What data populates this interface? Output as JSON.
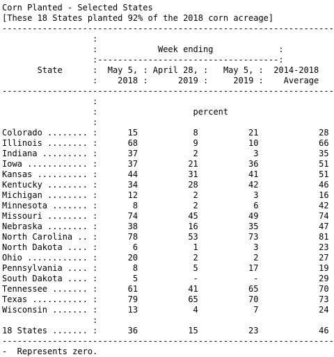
{
  "title": "Corn Planted - Selected States",
  "subtitle": "[These 18 States planted 92% of the 2018 corn acreage]",
  "header": {
    "week_ending": "Week ending",
    "state": "State",
    "col1": [
      "May 5,",
      "2018"
    ],
    "col2": [
      "April 28,",
      "2019"
    ],
    "col3": [
      "May 5,",
      "2019"
    ],
    "col4": [
      "2014-2018",
      "Average"
    ],
    "unit": "percent"
  },
  "rows": [
    {
      "state": "Colorado ........",
      "v": [
        "15",
        "8",
        "21",
        "28"
      ]
    },
    {
      "state": "Illinois ........",
      "v": [
        "68",
        "9",
        "10",
        "66"
      ]
    },
    {
      "state": "Indiana .........",
      "v": [
        "37",
        "2",
        "3",
        "35"
      ]
    },
    {
      "state": "Iowa ............",
      "v": [
        "37",
        "21",
        "36",
        "51"
      ]
    },
    {
      "state": "Kansas ..........",
      "v": [
        "44",
        "31",
        "41",
        "51"
      ]
    },
    {
      "state": "Kentucky ........",
      "v": [
        "34",
        "28",
        "42",
        "46"
      ]
    },
    {
      "state": "Michigan ........",
      "v": [
        "12",
        "2",
        "3",
        "16"
      ]
    },
    {
      "state": "Minnesota .......",
      "v": [
        "8",
        "2",
        "6",
        "42"
      ]
    },
    {
      "state": "Missouri ........",
      "v": [
        "74",
        "45",
        "49",
        "74"
      ]
    },
    {
      "state": "Nebraska ........",
      "v": [
        "38",
        "16",
        "35",
        "47"
      ]
    },
    {
      "state": "North Carolina ..",
      "v": [
        "78",
        "53",
        "73",
        "81"
      ]
    },
    {
      "state": "North Dakota ....",
      "v": [
        "6",
        "1",
        "3",
        "23"
      ]
    },
    {
      "state": "Ohio ............",
      "v": [
        "20",
        "2",
        "2",
        "27"
      ]
    },
    {
      "state": "Pennsylvania ....",
      "v": [
        "8",
        "5",
        "17",
        "19"
      ]
    },
    {
      "state": "South Dakota ....",
      "v": [
        "5",
        "-",
        "-",
        "29"
      ]
    },
    {
      "state": "Tennessee .......",
      "v": [
        "61",
        "41",
        "65",
        "70"
      ]
    },
    {
      "state": "Texas ...........",
      "v": [
        "79",
        "65",
        "70",
        "73"
      ]
    },
    {
      "state": "Wisconsin .......",
      "v": [
        "13",
        "4",
        "7",
        "24"
      ]
    }
  ],
  "total": {
    "state": "18 States .......",
    "v": [
      "36",
      "15",
      "23",
      "46"
    ]
  },
  "footnote": "-  Represents zero."
}
